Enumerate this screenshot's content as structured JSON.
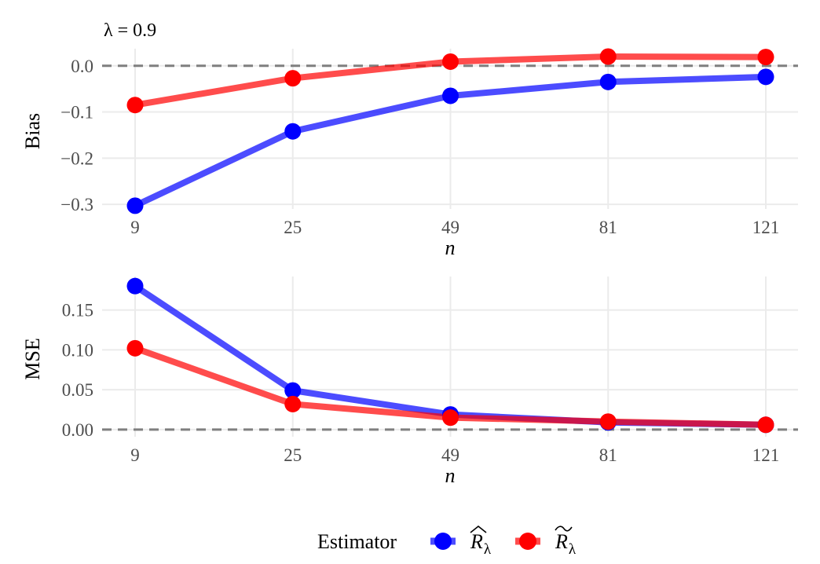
{
  "chart_data": [
    {
      "type": "line",
      "title": "λ = 0.9",
      "xlabel": "n",
      "ylabel": "Bias",
      "x": [
        9,
        25,
        49,
        81,
        121
      ],
      "xticks": [
        "9",
        "25",
        "49",
        "81",
        "121"
      ],
      "ylim": [
        -0.31,
        0.037
      ],
      "yticks": [
        0.0,
        -0.1,
        -0.2,
        -0.3
      ],
      "ytick_labels": [
        "0.0",
        "−0.1",
        "−0.2",
        "−0.3"
      ],
      "reference_line": 0.0,
      "grid": true,
      "series": [
        {
          "name": "R̂λ",
          "color": "#0000ff",
          "values": [
            -0.303,
            -0.142,
            -0.065,
            -0.035,
            -0.024
          ]
        },
        {
          "name": "R̃λ",
          "color": "#ff0000",
          "values": [
            -0.085,
            -0.027,
            0.009,
            0.02,
            0.019
          ]
        }
      ]
    },
    {
      "type": "line",
      "title": "",
      "xlabel": "n",
      "ylabel": "MSE",
      "x": [
        9,
        25,
        49,
        81,
        121
      ],
      "xticks": [
        "9",
        "25",
        "49",
        "81",
        "121"
      ],
      "ylim": [
        -0.009,
        0.192
      ],
      "yticks": [
        0.15,
        0.1,
        0.05,
        0.0
      ],
      "ytick_labels": [
        "0.15",
        "0.10",
        "0.05",
        "0.00"
      ],
      "reference_line": 0.0,
      "grid": true,
      "series": [
        {
          "name": "R̂λ",
          "color": "#0000ff",
          "values": [
            0.18,
            0.049,
            0.019,
            0.009,
            0.006
          ]
        },
        {
          "name": "R̃λ",
          "color": "#ff0000",
          "values": [
            0.102,
            0.032,
            0.015,
            0.01,
            0.006
          ]
        }
      ]
    }
  ],
  "legend": {
    "title": "Estimator",
    "position": "bottom",
    "items": [
      {
        "symbol": "R",
        "accent": "hat",
        "subscript": "λ",
        "color": "#0000ff"
      },
      {
        "symbol": "R",
        "accent": "tilde",
        "subscript": "λ",
        "color": "#ff0000"
      }
    ]
  }
}
